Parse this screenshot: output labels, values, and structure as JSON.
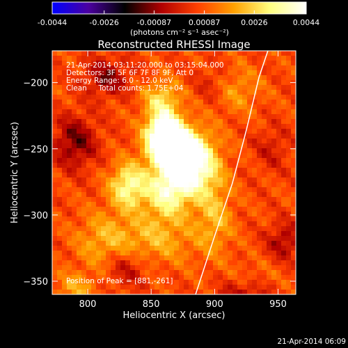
{
  "colorbar": {
    "ticks": [
      "-0.0044",
      "-0.0026",
      "-0.00087",
      "0.00087",
      "0.0026",
      "0.0044"
    ],
    "tick_values": [
      -0.0044,
      -0.0026,
      -0.00087,
      0.00087,
      0.0026,
      0.0044
    ],
    "range": [
      -0.0044,
      0.0044
    ],
    "units_label": "(photons cm⁻² s⁻¹ asec⁻²)",
    "colormap": [
      "#0000ff",
      "#4b00a0",
      "#000000",
      "#b00000",
      "#ff4000",
      "#ffa000",
      "#ffff80",
      "#ffffff"
    ]
  },
  "footer": {
    "timestamp": "21-Apr-2014 06:09"
  },
  "chart_data": {
    "type": "heatmap",
    "title": "Reconstructed RHESSI Image",
    "xlabel": "Heliocentric X (arcsec)",
    "ylabel": "Heliocentric Y (arcsec)",
    "xlim": [
      772,
      964
    ],
    "ylim": [
      -360,
      -176
    ],
    "x_ticks": [
      800,
      850,
      900,
      950
    ],
    "x_tick_labels": [
      "800",
      "850",
      "900",
      "950"
    ],
    "y_ticks": [
      -200,
      -250,
      -300,
      -350
    ],
    "y_tick_labels": [
      "−200",
      "−250",
      "−300",
      "−350"
    ],
    "annotations": [
      "21-Apr-2014 03:11:20.000 to 03:15:04.000",
      "Detectors: 3F 5F 6F 7F 8F 9F, Att 0",
      "Energy Range: 6.0 - 12.0 keV",
      "Clean     Total counts: 1.75E+04"
    ],
    "peak_label": "Position of Peak = [881,-261]",
    "peak": [
      881,
      -261
    ],
    "limb_curve": [
      [
        885,
        -360
      ],
      [
        900,
        -316
      ],
      [
        914,
        -276
      ],
      [
        925,
        -236
      ],
      [
        935,
        -196
      ],
      [
        942,
        -176
      ]
    ],
    "limb_color": "#ffffff",
    "sources": [
      {
        "x": 881,
        "y": -261,
        "amp": 0.0044,
        "sx": 14,
        "sy": 16
      },
      {
        "x": 860,
        "y": -238,
        "amp": 0.004,
        "sx": 10,
        "sy": 12
      },
      {
        "x": 866,
        "y": -250,
        "amp": 0.003,
        "sx": 12,
        "sy": 10
      },
      {
        "x": 832,
        "y": -278,
        "amp": 0.0028,
        "sx": 10,
        "sy": 12
      },
      {
        "x": 862,
        "y": -282,
        "amp": 0.0026,
        "sx": 12,
        "sy": 14
      },
      {
        "x": 858,
        "y": -212,
        "amp": 0.0018,
        "sx": 10,
        "sy": 10
      },
      {
        "x": 850,
        "y": -318,
        "amp": 0.0014,
        "sx": 26,
        "sy": 14
      },
      {
        "x": 900,
        "y": -300,
        "amp": 0.0014,
        "sx": 10,
        "sy": 20
      },
      {
        "x": 810,
        "y": -320,
        "amp": 0.001,
        "sx": 14,
        "sy": 16
      },
      {
        "x": 790,
        "y": -355,
        "amp": 0.0012,
        "sx": 12,
        "sy": 8
      },
      {
        "x": 915,
        "y": -205,
        "amp": 0.0012,
        "sx": 14,
        "sy": 12
      },
      {
        "x": 930,
        "y": -350,
        "amp": 0.0008,
        "sx": 14,
        "sy": 10
      },
      {
        "x": 790,
        "y": -245,
        "amp": -0.0018,
        "sx": 12,
        "sy": 14
      },
      {
        "x": 815,
        "y": -196,
        "amp": -0.0016,
        "sx": 12,
        "sy": 10
      },
      {
        "x": 830,
        "y": -340,
        "amp": -0.0012,
        "sx": 12,
        "sy": 10
      },
      {
        "x": 925,
        "y": -360,
        "amp": -0.0016,
        "sx": 14,
        "sy": 10
      },
      {
        "x": 955,
        "y": -320,
        "amp": -0.0014,
        "sx": 10,
        "sy": 10
      },
      {
        "x": 900,
        "y": -202,
        "amp": -0.001,
        "sx": 10,
        "sy": 10
      },
      {
        "x": 945,
        "y": -250,
        "amp": -0.0008,
        "sx": 10,
        "sy": 12
      }
    ],
    "background_level": 0.0007
  }
}
